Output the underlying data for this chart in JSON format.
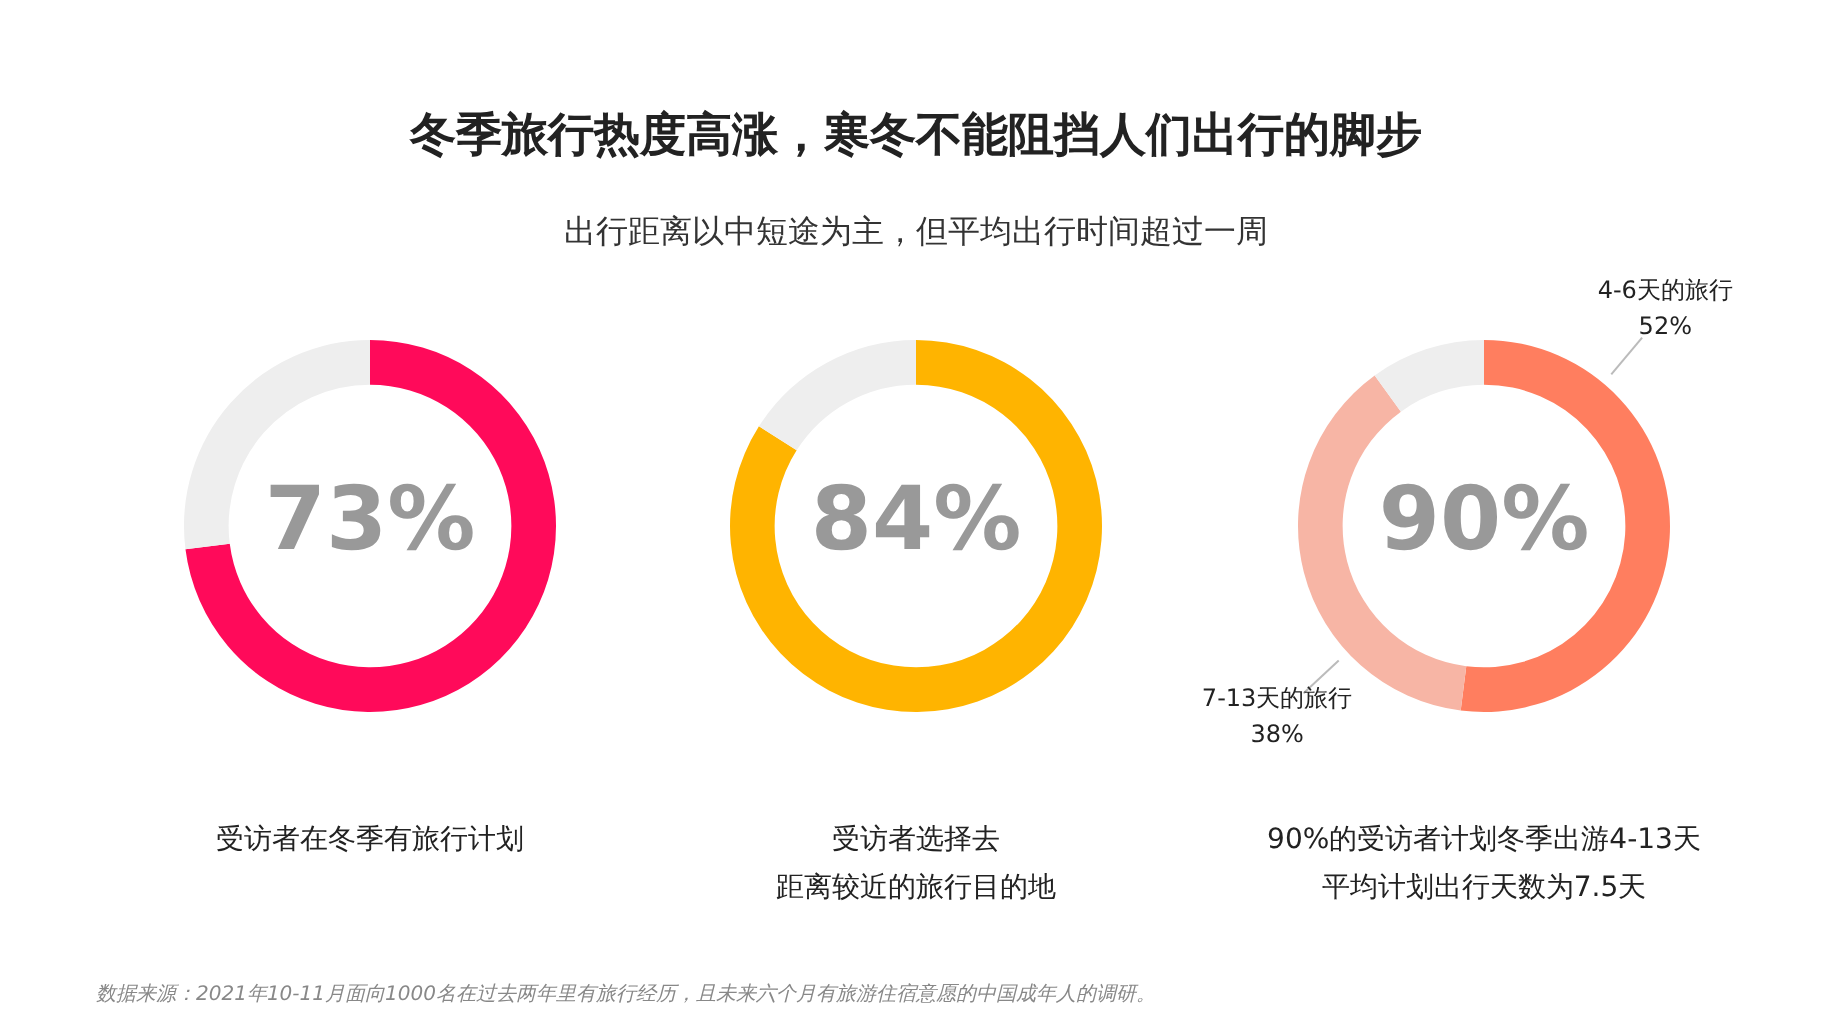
{
  "chart_data": [
    {
      "type": "other",
      "title": "冬季旅行热度高涨，寒冬不能阻挡人们出行的脚步",
      "subtitle": "出行距离以中短途为主，但平均出行时间超过一周",
      "annotations": [
        "数据来源：2021年10-11月面向1000名在过去两年里有旅行经历，且未来六个月有旅游住宿意愿的中国成年人的调研。"
      ]
    },
    {
      "type": "donut",
      "categories": [
        null,
        null
      ],
      "values": [
        73,
        27
      ],
      "colors": [
        "#ff0a5a",
        "#eeeeee"
      ],
      "value_labels": [
        "73%",
        null
      ],
      "xlabel": "受访者在冬季有旅行计划"
    },
    {
      "type": "donut",
      "categories": [
        null,
        null
      ],
      "values": [
        84,
        16
      ],
      "colors": [
        "#ffb400",
        "#eeeeee"
      ],
      "value_labels": [
        "84%",
        null
      ],
      "xlabel": [
        "受访者选择去",
        "距离较近的旅行目的地"
      ]
    },
    {
      "type": "donut",
      "categories": [
        "4-6天的旅行",
        "7-13天的旅行",
        null
      ],
      "values": [
        52,
        38,
        10
      ],
      "colors": [
        "#ff7e5f",
        "#f7b5a5",
        "#eeeeee"
      ],
      "value_labels": [
        "52%",
        "38%",
        null
      ],
      "annotations": [
        "90%"
      ],
      "xlabel": [
        "90%的受访者计划冬季出游4-13天",
        "平均计划出行天数为7.5天"
      ]
    }
  ]
}
